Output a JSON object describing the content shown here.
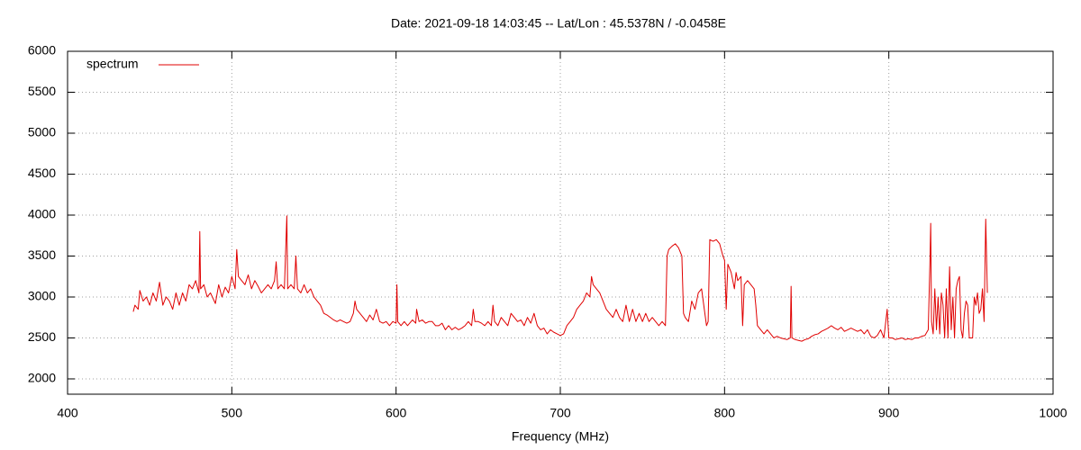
{
  "chart_data": {
    "type": "line",
    "title": "Date: 2021-09-18 14:03:45  --  Lat/Lon : 45.5378N / -0.0458E",
    "x_label": "Frequency (MHz)",
    "xlim": [
      400,
      1000
    ],
    "xticks": [
      400,
      500,
      600,
      700,
      800,
      900,
      1000
    ],
    "ylim": [
      1813,
      6000
    ],
    "yticks": [
      2000,
      2500,
      3000,
      3500,
      4000,
      4500,
      5000,
      5500,
      6000
    ],
    "grid": true,
    "legend": "top left",
    "series": [
      {
        "name": "spectrum",
        "color": "#e00000",
        "x": [
          440,
          441,
          443,
          444,
          446,
          448,
          450,
          452,
          454,
          456,
          458,
          460,
          462,
          464,
          466,
          468,
          470,
          472,
          474,
          476,
          478,
          480,
          480.5,
          481,
          483,
          485,
          487,
          490,
          492,
          494,
          496,
          498,
          500,
          502,
          503,
          504,
          506,
          508,
          510,
          512,
          514,
          516,
          518,
          520,
          522,
          524,
          526,
          527,
          528,
          530,
          532,
          533.5,
          534,
          536,
          538,
          539,
          540,
          542,
          544,
          546,
          548,
          550,
          552,
          554,
          556,
          558,
          560,
          562,
          564,
          566,
          568,
          570,
          572,
          574,
          575,
          576,
          578,
          580,
          582,
          584,
          586,
          588,
          590,
          592,
          594,
          596,
          598,
          600,
          600.5,
          601,
          603,
          605,
          607,
          610,
          612,
          612.5,
          614,
          616,
          618,
          620,
          622,
          624,
          626,
          628,
          630,
          632,
          634,
          636,
          638,
          640,
          642,
          644,
          646,
          647,
          648,
          650,
          652,
          654,
          656,
          658,
          659,
          660,
          662,
          664,
          666,
          668,
          670,
          672,
          674,
          676,
          678,
          680,
          682,
          684,
          686,
          688,
          690,
          692,
          694,
          696,
          698,
          700,
          702,
          704,
          706,
          708,
          710,
          712,
          714,
          716,
          718,
          719,
          720,
          722,
          724,
          726,
          728,
          730,
          732,
          734,
          736,
          738,
          740,
          742,
          744,
          746,
          748,
          750,
          752,
          754,
          756,
          758,
          760,
          762,
          764,
          765,
          766,
          768,
          770,
          772,
          774,
          775,
          776,
          778,
          780,
          782,
          784,
          786,
          788,
          789,
          790,
          791,
          793,
          795,
          797,
          799,
          800,
          801,
          802,
          804,
          806,
          807,
          808,
          810,
          811,
          812,
          814,
          816,
          818,
          819,
          820,
          822,
          824,
          826,
          828,
          830,
          832,
          834,
          836,
          838,
          840,
          840.5,
          841,
          843,
          845,
          847,
          849,
          851,
          853,
          855,
          857,
          859,
          861,
          863,
          865,
          867,
          869,
          871,
          873,
          875,
          877,
          879,
          881,
          883,
          885,
          887,
          889,
          891,
          893,
          895,
          897,
          899,
          900,
          902,
          904,
          906,
          908,
          910,
          912,
          914,
          916,
          918,
          920,
          922,
          924,
          925,
          925.5,
          926,
          927,
          928,
          929,
          930,
          931,
          932,
          933,
          934,
          935,
          936,
          937,
          938,
          939,
          940,
          941,
          942,
          943,
          944,
          945,
          946,
          947,
          948,
          949,
          950,
          951,
          952,
          953,
          954,
          955,
          956,
          957,
          958,
          959,
          960
        ],
        "values": [
          2820,
          2900,
          2850,
          3080,
          2950,
          3000,
          2900,
          3050,
          2950,
          3180,
          2900,
          3000,
          2950,
          2850,
          3050,
          2900,
          3050,
          2950,
          3150,
          3100,
          3200,
          3050,
          3800,
          3100,
          3150,
          3000,
          3050,
          2920,
          3150,
          3000,
          3120,
          3050,
          3250,
          3100,
          3580,
          3250,
          3200,
          3150,
          3270,
          3100,
          3200,
          3130,
          3050,
          3100,
          3150,
          3100,
          3200,
          3430,
          3100,
          3150,
          3100,
          3990,
          3100,
          3150,
          3100,
          3500,
          3100,
          3050,
          3150,
          3050,
          3100,
          3000,
          2950,
          2900,
          2800,
          2780,
          2750,
          2720,
          2700,
          2720,
          2700,
          2680,
          2700,
          2800,
          2950,
          2850,
          2800,
          2750,
          2700,
          2780,
          2720,
          2850,
          2700,
          2680,
          2700,
          2650,
          2700,
          2680,
          3150,
          2700,
          2650,
          2700,
          2650,
          2720,
          2680,
          2850,
          2700,
          2720,
          2680,
          2700,
          2700,
          2650,
          2650,
          2680,
          2600,
          2650,
          2600,
          2630,
          2600,
          2620,
          2650,
          2700,
          2650,
          2850,
          2700,
          2700,
          2680,
          2650,
          2700,
          2650,
          2900,
          2700,
          2650,
          2750,
          2700,
          2650,
          2800,
          2750,
          2700,
          2720,
          2650,
          2750,
          2680,
          2800,
          2650,
          2600,
          2620,
          2550,
          2600,
          2570,
          2550,
          2530,
          2550,
          2650,
          2700,
          2750,
          2850,
          2900,
          2950,
          3050,
          3000,
          3250,
          3150,
          3100,
          3050,
          2950,
          2850,
          2800,
          2750,
          2850,
          2750,
          2700,
          2900,
          2700,
          2850,
          2700,
          2800,
          2700,
          2800,
          2700,
          2750,
          2700,
          2650,
          2700,
          2650,
          3500,
          3580,
          3620,
          3650,
          3600,
          3500,
          2800,
          2750,
          2700,
          2950,
          2850,
          3050,
          3100,
          2800,
          2650,
          2700,
          3700,
          3680,
          3700,
          3650,
          3500,
          3450,
          2850,
          3400,
          3300,
          3100,
          3300,
          3200,
          3250,
          2650,
          3150,
          3200,
          3150,
          3100,
          2900,
          2650,
          2600,
          2550,
          2600,
          2550,
          2500,
          2520,
          2500,
          2490,
          2480,
          2500,
          3130,
          2500,
          2480,
          2470,
          2460,
          2480,
          2490,
          2520,
          2540,
          2550,
          2580,
          2600,
          2620,
          2650,
          2620,
          2600,
          2630,
          2580,
          2600,
          2620,
          2600,
          2580,
          2600,
          2550,
          2600,
          2520,
          2500,
          2530,
          2600,
          2500,
          2850,
          2500,
          2500,
          2480,
          2490,
          2500,
          2480,
          2490,
          2480,
          2500,
          2500,
          2520,
          2530,
          2600,
          3400,
          3900,
          2700,
          2550,
          3100,
          2600,
          3000,
          2550,
          3050,
          2900,
          2500,
          3100,
          2500,
          3370,
          2600,
          3000,
          2500,
          3100,
          3200,
          3250,
          2600,
          2500,
          2800,
          2950,
          2900,
          2500,
          2500,
          2500,
          3000,
          2900,
          3050,
          2800,
          2850,
          3100,
          2700,
          3950,
          3050
        ]
      }
    ]
  }
}
